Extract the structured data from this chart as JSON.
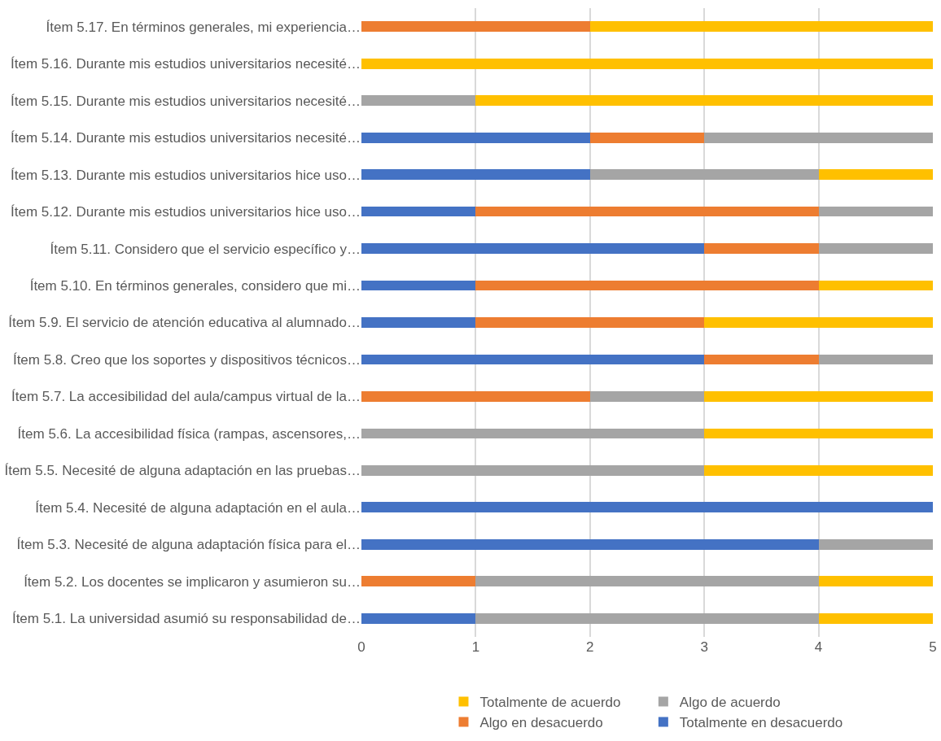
{
  "chart_data": {
    "type": "bar",
    "orientation": "horizontal",
    "stacked": true,
    "categories": [
      "Ítem 5.17. En términos generales, mi experiencia…",
      "Ítem 5.16. Durante mis estudios universitarios necesité…",
      "Ítem 5.15. Durante mis estudios universitarios necesité…",
      "Ítem 5.14. Durante mis estudios universitarios necesité…",
      "Ítem 5.13. Durante mis estudios universitarios hice uso…",
      "Ítem 5.12. Durante mis estudios universitarios hice uso…",
      "Ítem 5.11. Considero que el servicio específico y…",
      "Ítem 5.10. En términos generales, considero que mi…",
      "Ítem 5.9. El servicio de atención educativa al alumnado…",
      "Ítem 5.8. Creo que los soportes y dispositivos técnicos…",
      "Ítem 5.7. La accesibilidad del aula/campus virtual de la…",
      "Ítem 5.6. La accesibilidad física (rampas, ascensores,…",
      "Ítem 5.5. Necesité de alguna adaptación en las pruebas…",
      "Ítem 5.4. Necesité de alguna adaptación en el aula…",
      "Ítem 5.3. Necesité de alguna adaptación física para el…",
      "Ítem 5.2. Los docentes se implicaron y asumieron su…",
      "Ítem 5.1. La universidad asumió su responsabilidad de…"
    ],
    "series": [
      {
        "name": "Totalmente en desacuerdo",
        "color": "#4472c4",
        "values": [
          0,
          0,
          0,
          2,
          2,
          1,
          3,
          1,
          1,
          3,
          0,
          0,
          0,
          5,
          4,
          0,
          1
        ]
      },
      {
        "name": "Algo en desacuerdo",
        "color": "#ed7d31",
        "values": [
          2,
          0,
          0,
          1,
          0,
          3,
          1,
          3,
          2,
          1,
          2,
          0,
          0,
          0,
          0,
          1,
          0
        ]
      },
      {
        "name": "Algo de acuerdo",
        "color": "#a5a5a5",
        "values": [
          0,
          0,
          1,
          2,
          2,
          1,
          1,
          0,
          0,
          1,
          1,
          3,
          3,
          0,
          1,
          3,
          3
        ]
      },
      {
        "name": "Totalmente de acuerdo",
        "color": "#ffc000",
        "values": [
          3,
          5,
          4,
          0,
          1,
          0,
          0,
          1,
          2,
          0,
          2,
          2,
          2,
          0,
          0,
          1,
          1
        ]
      }
    ],
    "xlim": [
      0,
      5
    ],
    "xticks": [
      0,
      1,
      2,
      3,
      4,
      5
    ],
    "grid": "x",
    "legend": "bottom"
  }
}
